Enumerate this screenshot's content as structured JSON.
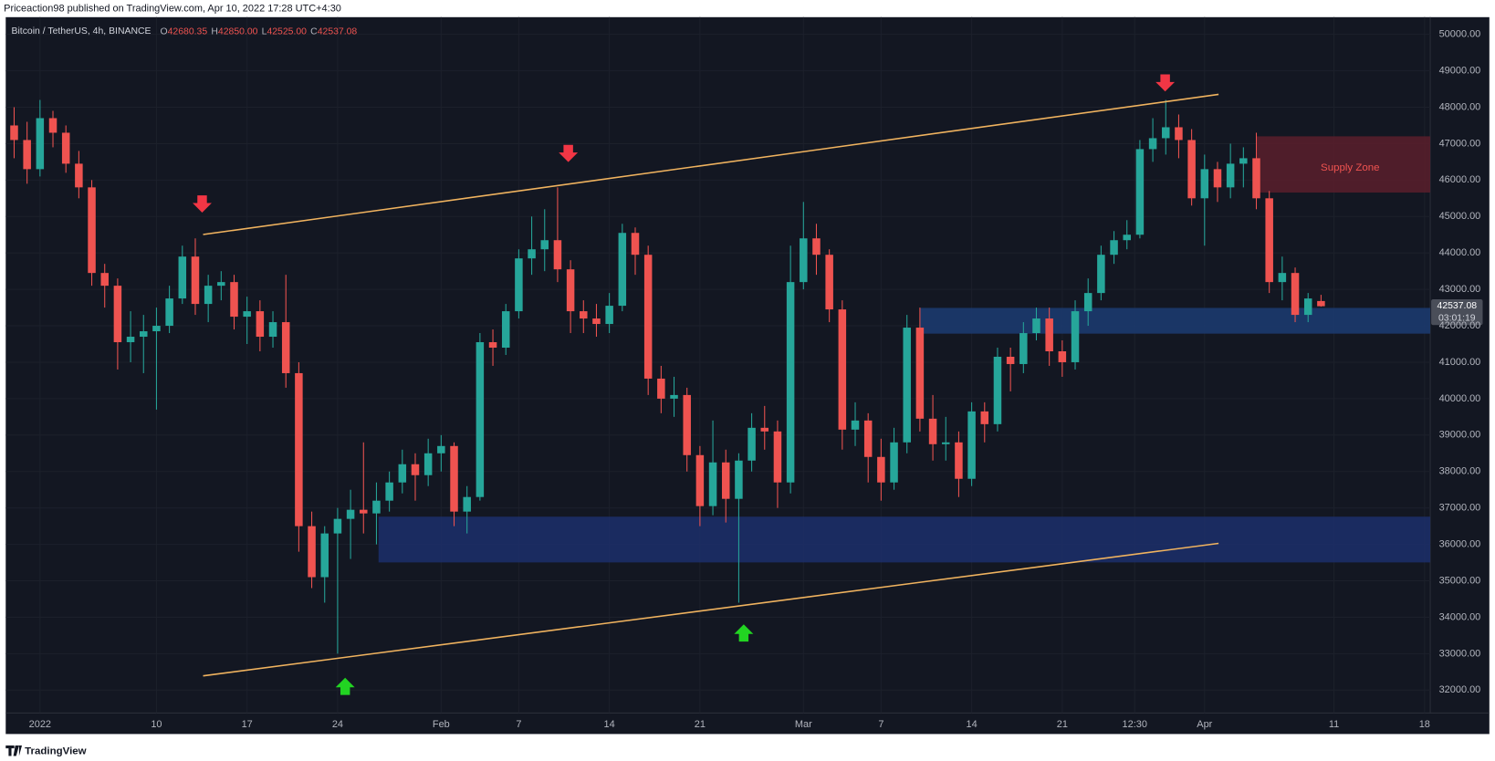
{
  "header": {
    "byline": "Priceaction98 published on TradingView.com, Apr 10, 2022 17:28 UTC+4:30",
    "ohlc": [
      {
        "label": "O",
        "value": "42680.35"
      },
      {
        "label": "H",
        "value": "42850.00"
      },
      {
        "label": "L",
        "value": "42525.00"
      },
      {
        "label": "C",
        "value": "42537.08"
      }
    ],
    "last_price": "42537.08",
    "countdown": "03:01:19"
  },
  "footer": {
    "brand": "TradingView"
  },
  "chart_data": {
    "type": "candlestick",
    "title": "Bitcoin / TetherUS, 4h, BINANCE",
    "annotations": [
      "Supply Zone"
    ],
    "up_color": "#26a69a",
    "down_color": "#ef5350",
    "grid": true,
    "x": [
      -2,
      -1,
      0,
      1,
      2,
      3,
      4,
      5,
      6,
      7,
      8,
      9,
      10,
      11,
      12,
      13,
      14,
      15,
      16,
      17,
      18,
      19,
      20,
      21,
      22,
      23,
      24,
      25,
      26,
      27,
      28,
      29,
      30,
      31,
      32,
      33,
      34,
      35,
      36,
      37,
      38,
      39,
      40,
      41,
      42,
      43,
      44,
      45,
      46,
      47,
      48,
      49,
      50,
      51,
      52,
      53,
      54,
      55,
      56,
      57,
      58,
      59,
      60,
      61,
      62,
      63,
      64,
      65,
      66,
      67,
      68,
      69,
      70,
      71,
      72,
      73,
      74,
      75,
      76,
      77,
      78,
      79,
      80,
      81,
      82,
      83,
      84,
      85,
      86,
      87,
      88,
      89,
      90,
      91,
      92,
      93,
      94,
      95,
      96,
      97,
      98,
      99
    ],
    "open": [
      47500,
      47100,
      46300,
      47700,
      47300,
      46450,
      45800,
      43450,
      43100,
      41550,
      41700,
      41850,
      42000,
      42750,
      43900,
      42600,
      43100,
      43200,
      42250,
      42400,
      41700,
      42100,
      40700,
      36500,
      35100,
      36300,
      36700,
      36950,
      36850,
      37200,
      37700,
      38200,
      37900,
      38500,
      38700,
      36900,
      37300,
      41550,
      41400,
      42400,
      43850,
      44100,
      44350,
      43550,
      42400,
      42200,
      42050,
      42550,
      44550,
      43950,
      40550,
      40000,
      40100,
      38450,
      37050,
      38250,
      37250,
      38300,
      39200,
      39100,
      37700,
      43200,
      44400,
      43950,
      42450,
      39150,
      39400,
      38400,
      37700,
      38800,
      41950,
      39450,
      38750,
      38800,
      37800,
      39650,
      39300,
      41150,
      40950,
      41800,
      42200,
      41300,
      41000,
      42400,
      42900,
      43950,
      44350,
      44500,
      46850,
      47150,
      47450,
      47100,
      45500,
      46300,
      45800,
      46450,
      46600,
      45500,
      43200,
      43450,
      42300,
      42680
    ],
    "high": [
      48000,
      47600,
      48200,
      47900,
      47500,
      46800,
      46000,
      43700,
      43300,
      42400,
      42300,
      42500,
      43100,
      44200,
      44400,
      43400,
      43500,
      43400,
      42800,
      42700,
      42400,
      43400,
      41000,
      36900,
      36500,
      37000,
      37500,
      38800,
      37700,
      38000,
      38600,
      38500,
      38900,
      39000,
      38800,
      37600,
      41800,
      41900,
      42600,
      44100,
      45000,
      45200,
      45800,
      43800,
      42700,
      42600,
      42900,
      44800,
      44700,
      44200,
      40900,
      40600,
      40300,
      38700,
      39400,
      38600,
      38500,
      39600,
      39800,
      39400,
      44200,
      45400,
      44800,
      44100,
      42700,
      39900,
      39600,
      38900,
      39200,
      42300,
      42500,
      40100,
      39500,
      39100,
      39900,
      39900,
      41400,
      41400,
      42100,
      42500,
      42500,
      41600,
      42700,
      43300,
      44200,
      44600,
      44900,
      47100,
      47700,
      48200,
      47800,
      47400,
      46700,
      46500,
      47000,
      46900,
      47300,
      45700,
      43900,
      43600,
      42900,
      42850
    ],
    "low": [
      46600,
      45900,
      46100,
      46900,
      46200,
      45500,
      43100,
      42500,
      40800,
      41000,
      40700,
      39700,
      41800,
      42600,
      42300,
      42100,
      42700,
      41900,
      41500,
      41300,
      41400,
      40300,
      35800,
      34800,
      34400,
      33000,
      35600,
      36300,
      36000,
      36900,
      37400,
      37200,
      37600,
      38000,
      36500,
      36300,
      37200,
      40900,
      41200,
      42200,
      43400,
      43500,
      43200,
      41800,
      41800,
      41700,
      41800,
      42400,
      43400,
      40100,
      39600,
      39500,
      38000,
      36500,
      36800,
      36600,
      34400,
      38000,
      38600,
      37000,
      37400,
      43000,
      43400,
      42100,
      38600,
      38700,
      37700,
      37200,
      37500,
      38500,
      39100,
      38300,
      38300,
      37300,
      37600,
      38800,
      39100,
      40200,
      40700,
      41600,
      40900,
      40600,
      40800,
      42000,
      42700,
      43700,
      44100,
      44400,
      46500,
      46700,
      46600,
      45300,
      44200,
      45400,
      45500,
      45800,
      45200,
      42900,
      42700,
      42100,
      42100,
      42525
    ],
    "close": [
      47100,
      46300,
      47700,
      47300,
      46450,
      45800,
      43450,
      43100,
      41550,
      41700,
      41850,
      42000,
      42750,
      43900,
      42600,
      43100,
      43200,
      42250,
      42400,
      41700,
      42100,
      40700,
      36500,
      35100,
      36300,
      36700,
      36950,
      36850,
      37200,
      37700,
      38200,
      37900,
      38500,
      38700,
      36900,
      37300,
      41550,
      41400,
      42400,
      43850,
      44100,
      44350,
      43550,
      42400,
      42200,
      42050,
      42550,
      44550,
      43950,
      40550,
      40000,
      40100,
      38450,
      37050,
      38250,
      37250,
      38300,
      39200,
      39100,
      37700,
      43200,
      44400,
      43950,
      42450,
      39150,
      39400,
      38400,
      37700,
      38800,
      41950,
      39450,
      38750,
      38800,
      37800,
      39650,
      39300,
      41150,
      40950,
      41800,
      42200,
      41300,
      41000,
      42400,
      42900,
      43950,
      44350,
      44500,
      46850,
      47150,
      47450,
      47100,
      45500,
      46300,
      45800,
      46450,
      46600,
      45500,
      43200,
      43450,
      42300,
      42750,
      42537
    ],
    "xlim": [
      -2.65,
      107.44
    ],
    "xticks": [
      {
        "value": 0,
        "label": "2022"
      },
      {
        "value": 9,
        "label": "10"
      },
      {
        "value": 16,
        "label": "17"
      },
      {
        "value": 23,
        "label": "24"
      },
      {
        "value": 31,
        "label": "Feb"
      },
      {
        "value": 37,
        "label": "7"
      },
      {
        "value": 44,
        "label": "14"
      },
      {
        "value": 51,
        "label": "21"
      },
      {
        "value": 59,
        "label": "Mar"
      },
      {
        "value": 65,
        "label": "7"
      },
      {
        "value": 72,
        "label": "14"
      },
      {
        "value": 79,
        "label": "21"
      },
      {
        "value": 84.6,
        "label": "12:30"
      },
      {
        "value": 90,
        "label": "Apr"
      },
      {
        "value": 100,
        "label": "11"
      },
      {
        "value": 107,
        "label": "18"
      }
    ],
    "ylim": [
      31370,
      50420
    ],
    "yticks": [
      {
        "value": 32000,
        "label": "32000.00"
      },
      {
        "value": 33000,
        "label": "33000.00"
      },
      {
        "value": 34000,
        "label": "34000.00"
      },
      {
        "value": 35000,
        "label": "35000.00"
      },
      {
        "value": 36000,
        "label": "36000.00"
      },
      {
        "value": 37000,
        "label": "37000.00"
      },
      {
        "value": 38000,
        "label": "38000.00"
      },
      {
        "value": 39000,
        "label": "39000.00"
      },
      {
        "value": 40000,
        "label": "40000.00"
      },
      {
        "value": 41000,
        "label": "41000.00"
      },
      {
        "value": 42000,
        "label": "42000.00"
      },
      {
        "value": 43000,
        "label": "43000.00"
      },
      {
        "value": 44000,
        "label": "44000.00"
      },
      {
        "value": 45000,
        "label": "45000.00"
      },
      {
        "value": 46000,
        "label": "46000.00"
      },
      {
        "value": 47000,
        "label": "47000.00"
      },
      {
        "value": 48000,
        "label": "48000.00"
      },
      {
        "value": 49000,
        "label": "49000.00"
      },
      {
        "value": 50000,
        "label": "50000.00"
      }
    ]
  }
}
